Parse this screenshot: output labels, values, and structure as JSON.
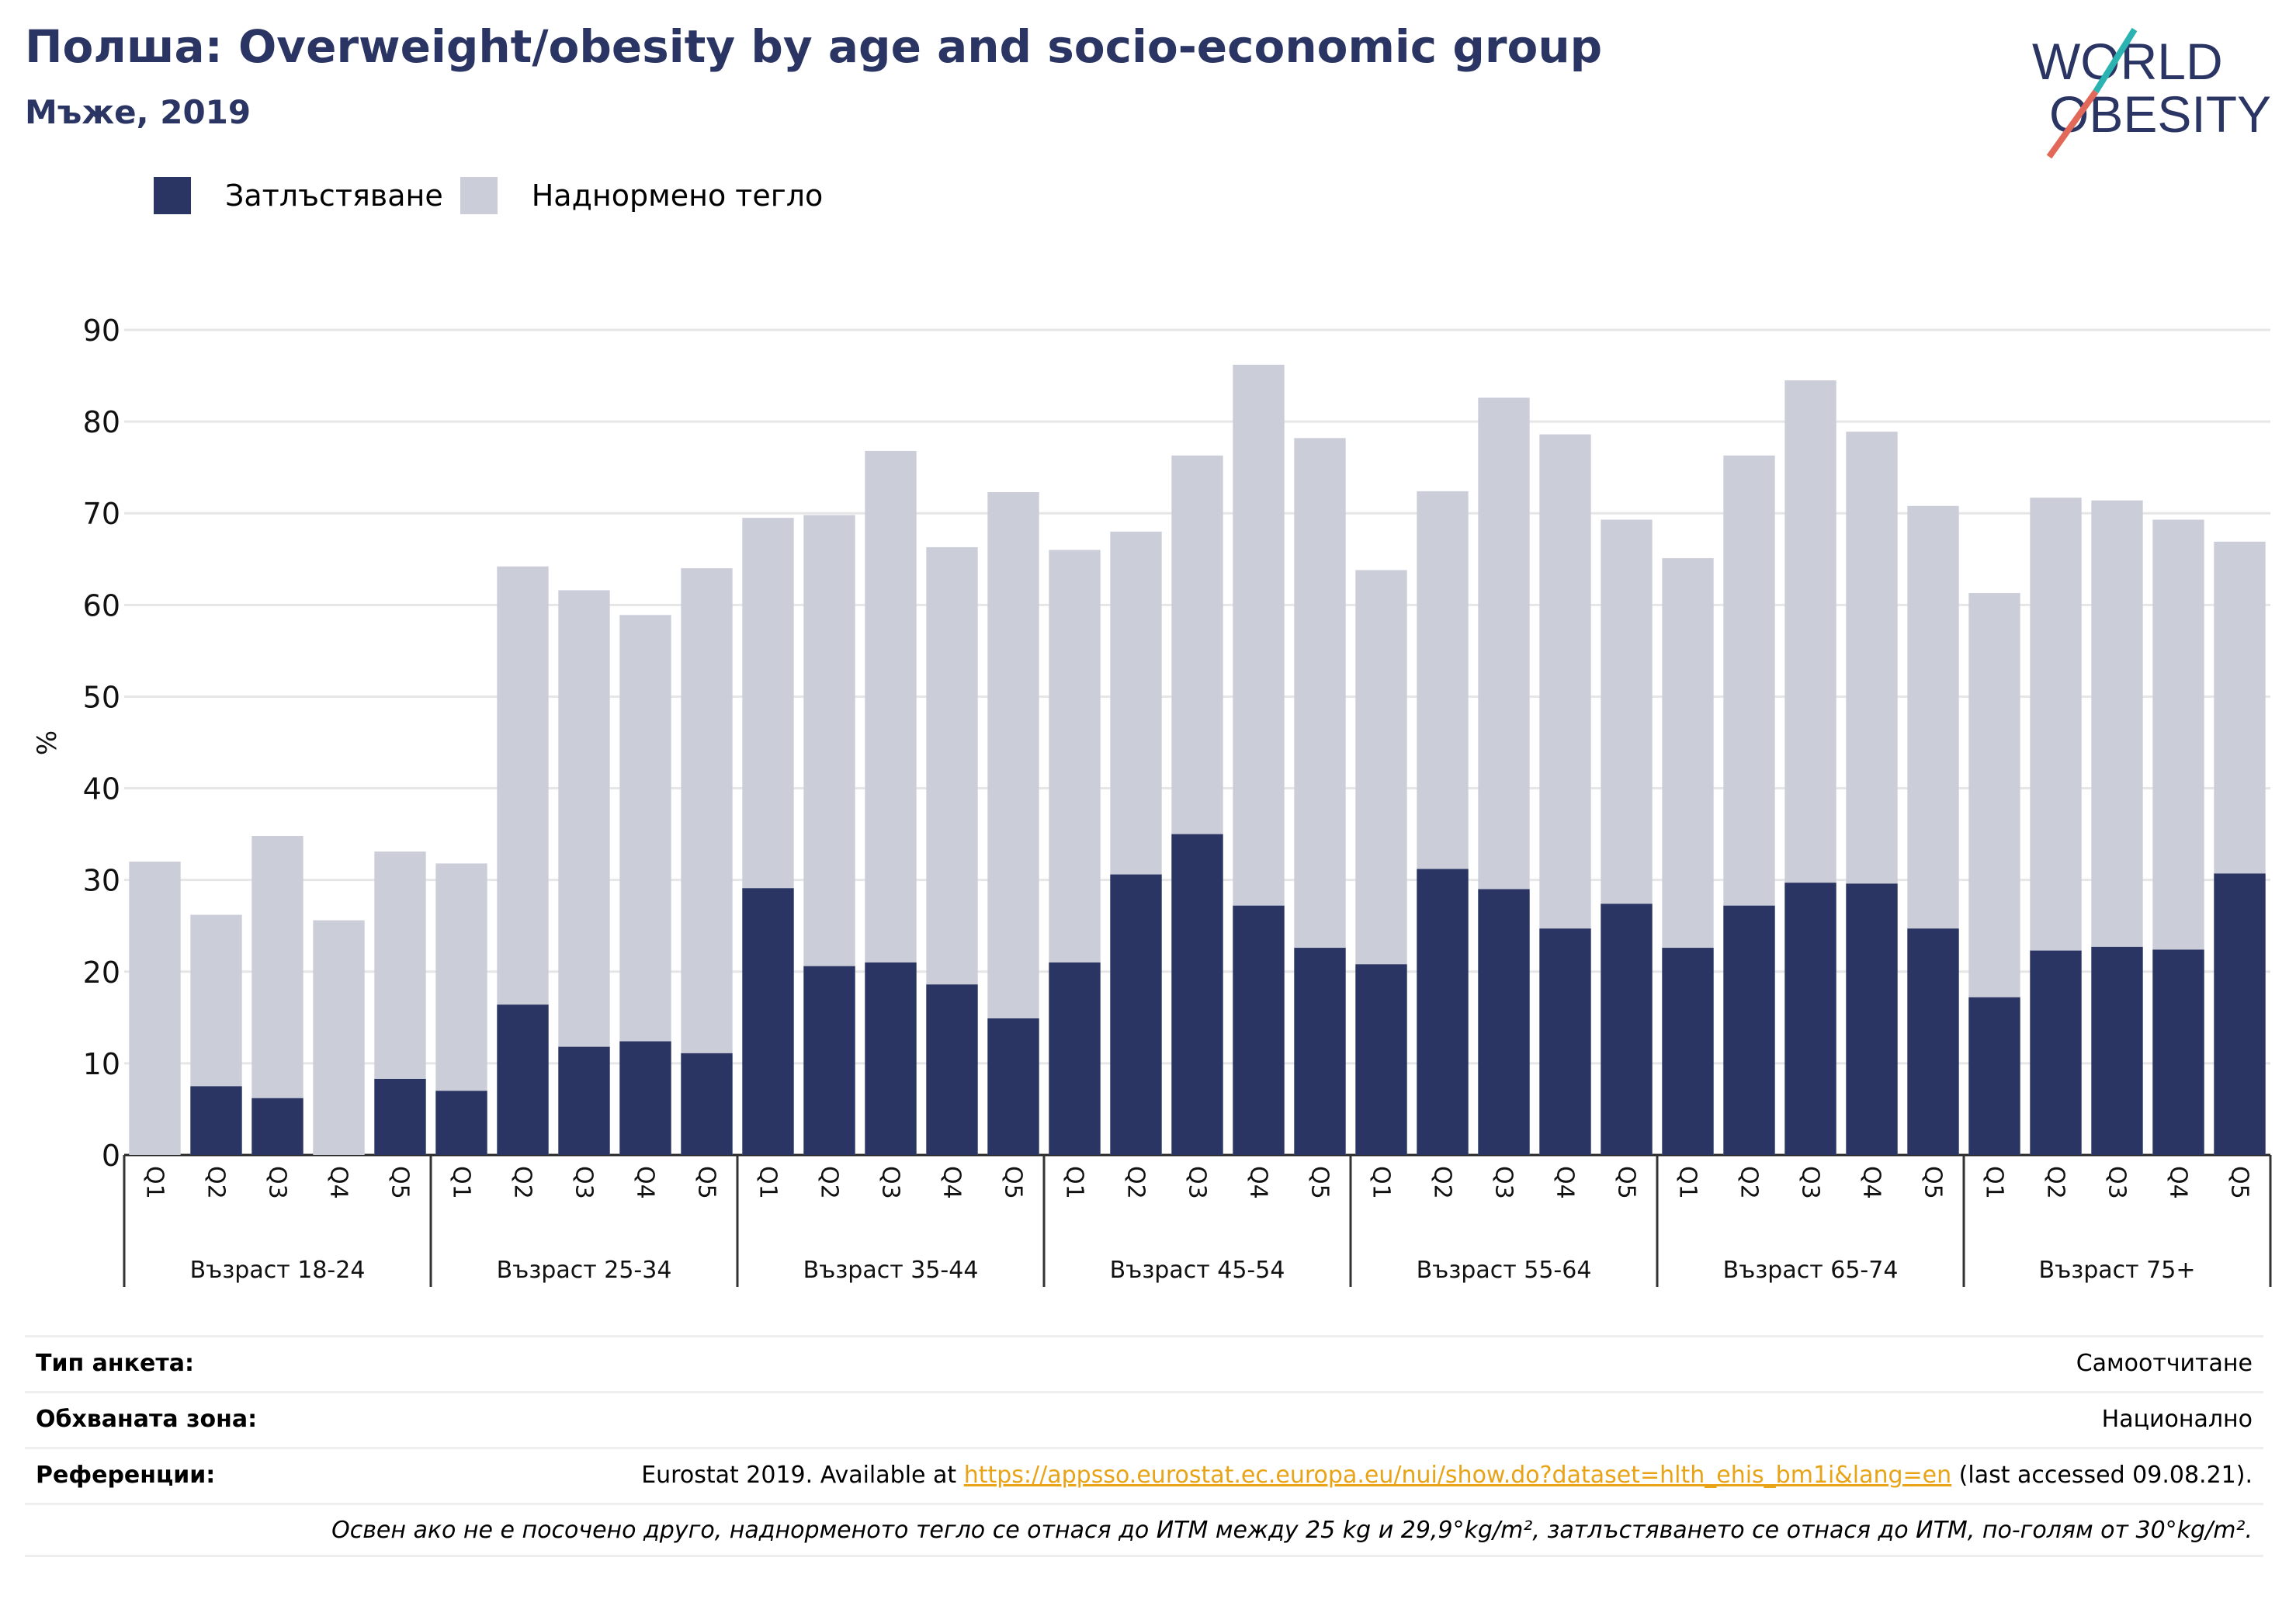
{
  "title": "Полша: Overweight/obesity by age and socio-economic group",
  "subtitle": "Мъже, 2019",
  "logo": {
    "line1": "WORLD",
    "line2": "OBESITY"
  },
  "colors": {
    "obesity": "#2a3563",
    "overweight": "#cbcdd9",
    "accent_teal": "#2bb3b1",
    "accent_red": "#e2685a",
    "link": "#e8a317"
  },
  "legend": [
    {
      "label": "Затлъстяване",
      "color": "#2a3563"
    },
    {
      "label": "Наднормено тегло",
      "color": "#cbcdd9"
    }
  ],
  "chart_data": {
    "type": "bar",
    "stacked": true,
    "ylabel": "%",
    "ylim": [
      0,
      90
    ],
    "yticks": [
      0,
      10,
      20,
      30,
      40,
      50,
      60,
      70,
      80,
      90
    ],
    "grid": true,
    "legend_position": "top-left",
    "quintiles": [
      "Q1",
      "Q2",
      "Q3",
      "Q4",
      "Q5"
    ],
    "groups": [
      {
        "label": "Възраст 18-24",
        "obesity": [
          0,
          7.5,
          6.2,
          0,
          8.3
        ],
        "overweight": [
          32.0,
          26.2,
          34.8,
          25.6,
          33.1
        ]
      },
      {
        "label": "Възраст 25-34",
        "obesity": [
          7.0,
          16.4,
          11.8,
          12.4,
          11.1
        ],
        "overweight": [
          31.8,
          64.2,
          61.6,
          58.9,
          64.0
        ]
      },
      {
        "label": "Възраст 35-44",
        "obesity": [
          29.1,
          20.6,
          21.0,
          18.6,
          14.9
        ],
        "overweight": [
          69.5,
          69.8,
          76.8,
          66.3,
          72.3
        ]
      },
      {
        "label": "Възраст 45-54",
        "obesity": [
          21.0,
          30.6,
          35.0,
          27.2,
          22.6
        ],
        "overweight": [
          66.0,
          68.0,
          76.3,
          86.2,
          78.2
        ]
      },
      {
        "label": "Възраст 55-64",
        "obesity": [
          20.8,
          31.2,
          29.0,
          24.7,
          27.4
        ],
        "overweight": [
          63.8,
          72.4,
          82.6,
          78.6,
          69.3
        ]
      },
      {
        "label": "Възраст 65-74",
        "obesity": [
          22.6,
          27.2,
          29.7,
          29.6,
          24.7
        ],
        "overweight": [
          65.1,
          76.3,
          84.5,
          78.9,
          70.8
        ]
      },
      {
        "label": "Възраст 75+",
        "obesity": [
          17.2,
          22.3,
          22.7,
          22.4,
          30.7
        ],
        "overweight": [
          61.3,
          71.7,
          71.4,
          69.3,
          66.9
        ]
      }
    ]
  },
  "footer": {
    "survey_key": "Тип анкета:",
    "survey_val": "Самоотчитане",
    "area_key": "Обхваната зона:",
    "area_val": "Национално",
    "ref_key": "Референции:",
    "ref_prefix": "Eurostat 2019. Available at ",
    "ref_link": "https://appsso.eurostat.ec.europa.eu/nui/show.do?dataset=hlth_ehis_bm1i&lang=en",
    "ref_suffix": " (last accessed 09.08.21).",
    "note": "Освен ако не е посочено друго, наднорменото тегло се отнася до ИТМ между 25 kg и 29,9°kg/m², затлъстяването се отнася до ИТМ, по-голям от 30°kg/m²."
  }
}
